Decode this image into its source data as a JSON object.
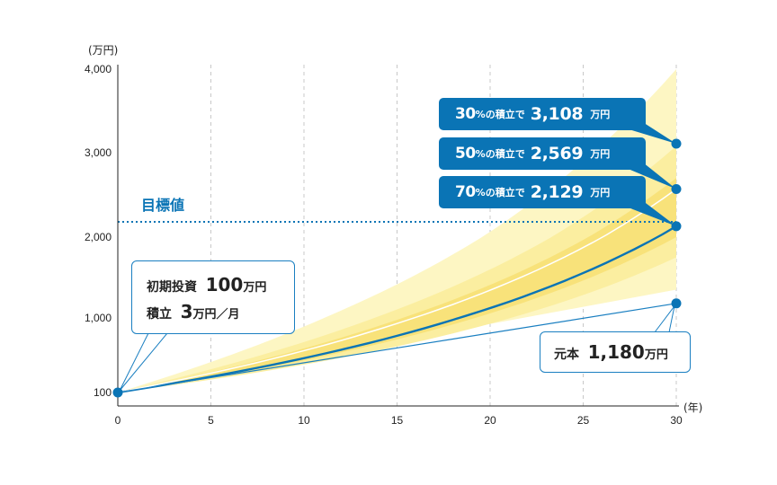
{
  "chart_data": {
    "type": "area",
    "title": "",
    "xlabel": "(年)",
    "ylabel": "(万円)",
    "x_ticks": [
      "0",
      "5",
      "10",
      "15",
      "20",
      "25",
      "30"
    ],
    "y_ticks": [
      "100",
      "1,000",
      "2,000",
      "3,000",
      "4,000"
    ],
    "xlim": [
      0,
      30
    ],
    "ylim": [
      100,
      4000
    ],
    "grid": "vertical-dashed",
    "target": {
      "label": "目標値",
      "value": 2129
    },
    "bands": [
      {
        "name": "30%の積立で",
        "start": 100,
        "end_upper": 4000,
        "end_lower": 1350
      },
      {
        "name": "50%の積立で",
        "start": 100,
        "end_upper": 3080,
        "end_lower": 1750
      },
      {
        "name": "70%の積立で",
        "start": 100,
        "end_upper": 2700,
        "end_lower": 2000
      }
    ],
    "series": [
      {
        "name": "70%の積立で",
        "start": 100,
        "end": 2129,
        "style": "bold"
      },
      {
        "name": "50%の積立で",
        "start": 100,
        "end": 2569,
        "style": "white"
      },
      {
        "name": "元本",
        "start": 100,
        "end": 1180,
        "style": "thin"
      }
    ],
    "endpoints": [
      {
        "label": "30%の積立で",
        "value": 3108
      },
      {
        "label": "50%の積立で",
        "value": 2569
      },
      {
        "label": "70%の積立で",
        "value": 2129
      },
      {
        "label": "元本",
        "value": 1180
      }
    ]
  },
  "callouts": [
    {
      "pct": "30",
      "pct_sign": "%",
      "suffix": "の積立で",
      "amount": "3,108",
      "unit": "万円"
    },
    {
      "pct": "50",
      "pct_sign": "%",
      "suffix": "の積立で",
      "amount": "2,569",
      "unit": "万円"
    },
    {
      "pct": "70",
      "pct_sign": "%",
      "suffix": "の積立で",
      "amount": "2,129",
      "unit": "万円"
    }
  ],
  "initial_box": {
    "line1_label": "初期投資",
    "line1_amount": "100",
    "line1_unit": "万円",
    "line2_label": "積立",
    "line2_amount": "3",
    "line2_unit": "万円／月"
  },
  "principal_box": {
    "label": "元本",
    "amount": "1,180",
    "unit": "万円"
  },
  "goal_label": "目標値",
  "colors": {
    "accent": "#0a74b5",
    "band_outer": "#fdf6c3",
    "band_mid": "#fbeea0",
    "band_inner": "#f8e27a"
  }
}
